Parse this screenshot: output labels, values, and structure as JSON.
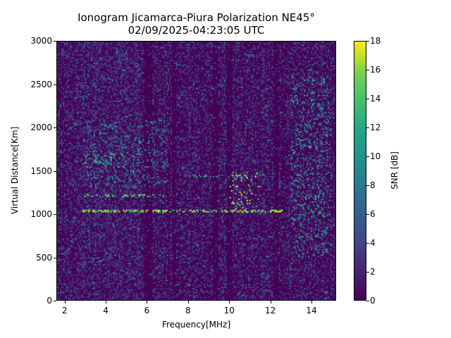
{
  "title": {
    "line1": "Ionogram Jicamarca-Piura Polarization NE45°",
    "line2": "02/09/2025-04:23:05 UTC"
  },
  "chart_data": {
    "type": "heatmap",
    "title": "Ionogram Jicamarca-Piura Polarization NE45° 02/09/2025-04:23:05 UTC",
    "xlabel": "Frequency[MHz]",
    "ylabel": "Virtual Distance[Km]",
    "colorbar_label": "SNR [dB]",
    "colormap": "viridis",
    "xlim": [
      1.6,
      15.2
    ],
    "ylim": [
      0,
      3000
    ],
    "clim": [
      0,
      18
    ],
    "xticks": [
      2,
      4,
      6,
      8,
      10,
      12,
      14
    ],
    "yticks": [
      0,
      500,
      1000,
      1500,
      2000,
      2500,
      3000
    ],
    "cticks": [
      0,
      2,
      4,
      6,
      8,
      10,
      12,
      14,
      16,
      18
    ],
    "grid": false,
    "features": [
      {
        "name": "ground-echo trace",
        "freq_range": [
          2.8,
          12.6
        ],
        "distance_km": 1040,
        "snr_db": 18
      },
      {
        "name": "second-hop trace",
        "freq_range": [
          2.8,
          6.8
        ],
        "distance_km": 1220,
        "snr_db": 16
      },
      {
        "name": "upper scatter band",
        "freq_range": [
          2.8,
          5.7
        ],
        "distance_km": [
          1550,
          1700
        ],
        "snr_db": 14
      },
      {
        "name": "scatter cluster",
        "freq_range": [
          10.0,
          11.5
        ],
        "distance_km": [
          1050,
          1500
        ],
        "snr_db": 18
      },
      {
        "name": "scatter band 1450km",
        "freq_range": [
          8.0,
          11.5
        ],
        "distance_km": 1450,
        "snr_db": 13
      },
      {
        "name": "diffuse echoes",
        "freq_range": [
          3.0,
          7.0
        ],
        "distance_km": [
          1300,
          2100
        ],
        "snr_db": 10
      },
      {
        "name": "high-freq sparse echoes",
        "freq_range": [
          13.0,
          15.0
        ],
        "distance_km": [
          500,
          2600
        ],
        "snr_db": 12
      }
    ],
    "dark_stripes_mhz": [
      5.9,
      6.1,
      7.3,
      9.3,
      10.0,
      12.3
    ],
    "background_snr_db": 1
  },
  "axes": {
    "xlabel": "Frequency[MHz]",
    "ylabel": "Virtual Distance[Km]",
    "xticks": [
      "2",
      "4",
      "6",
      "8",
      "10",
      "12",
      "14"
    ],
    "yticks": [
      "0",
      "500",
      "1000",
      "1500",
      "2000",
      "2500",
      "3000"
    ]
  },
  "colorbar": {
    "label": "SNR [dB]",
    "ticks": [
      "0",
      "2",
      "4",
      "6",
      "8",
      "10",
      "12",
      "14",
      "16",
      "18"
    ]
  }
}
